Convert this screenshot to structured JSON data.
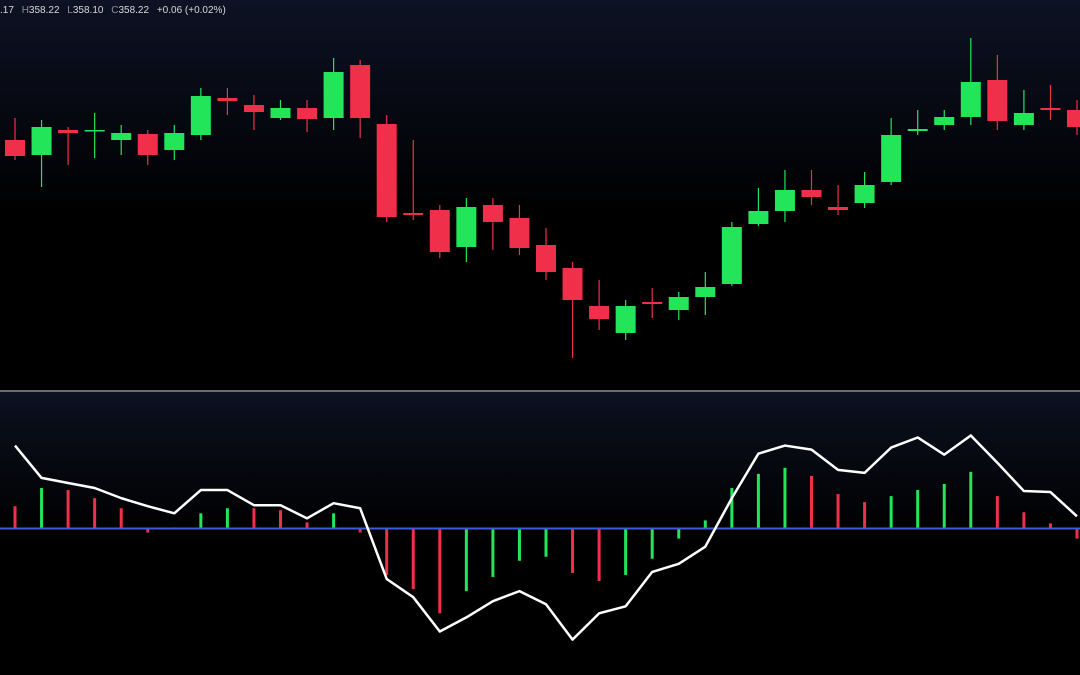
{
  "header": {
    "open_value": ".17",
    "high_label": "H",
    "high_value": "358.22",
    "low_label": "L",
    "low_value": "358.10",
    "close_label": "C",
    "close_value": "358.22",
    "change": "+0.06 (+0.02%)"
  },
  "chart_data": [
    {
      "type": "candlestick",
      "up_color": "#22e55a",
      "down_color": "#f0304a",
      "ylim": [
        0,
        390
      ],
      "open": [
        250,
        235,
        260,
        259,
        250,
        256,
        240,
        255,
        292,
        285,
        272,
        282,
        272,
        325,
        266,
        177,
        180,
        143,
        185,
        172,
        145,
        122,
        84,
        57,
        88,
        80,
        93,
        106,
        166,
        179,
        200,
        183,
        187,
        208,
        259,
        265,
        273,
        310,
        265,
        282,
        280
      ],
      "close": [
        234,
        263,
        257,
        260,
        257,
        235,
        257,
        294,
        289,
        278,
        282,
        271,
        318,
        272,
        173,
        175,
        138,
        183,
        168,
        142,
        118,
        90,
        71,
        84,
        86,
        93,
        103,
        163,
        179,
        200,
        193,
        180,
        205,
        255,
        261,
        273,
        308,
        269,
        277,
        280,
        263
      ],
      "high": [
        272,
        270,
        263,
        277,
        265,
        260,
        265,
        302,
        302,
        295,
        290,
        290,
        332,
        330,
        275,
        250,
        185,
        192,
        192,
        185,
        162,
        128,
        110,
        90,
        102,
        98,
        118,
        168,
        202,
        220,
        220,
        205,
        218,
        272,
        280,
        280,
        352,
        335,
        300,
        305,
        290
      ],
      "low": [
        230,
        203,
        225,
        232,
        235,
        225,
        230,
        250,
        275,
        260,
        270,
        258,
        260,
        252,
        168,
        170,
        132,
        128,
        140,
        135,
        110,
        32,
        60,
        50,
        72,
        70,
        75,
        104,
        164,
        168,
        185,
        175,
        182,
        205,
        255,
        260,
        265,
        260,
        260,
        270,
        255
      ]
    },
    {
      "type": "histogram_line",
      "ylim": [
        -145,
        135
      ],
      "zero_color": "#3b5bdb",
      "line_color": "#ffffff",
      "bars": [
        22,
        40,
        38,
        30,
        20,
        -4,
        1,
        15,
        20,
        20,
        18,
        6,
        15,
        -4,
        -46,
        -60,
        -84,
        -62,
        -48,
        -32,
        -28,
        -44,
        -52,
        -46,
        -30,
        -10,
        8,
        40,
        54,
        60,
        52,
        34,
        26,
        32,
        38,
        44,
        56,
        32,
        16,
        5,
        -10
      ],
      "bar_colors": [
        "#f0304a",
        "#22e55a",
        "#f0304a",
        "#f0304a",
        "#f0304a",
        "#f0304a",
        "#22e55a",
        "#22e55a",
        "#22e55a",
        "#f0304a",
        "#f0304a",
        "#f0304a",
        "#22e55a",
        "#f0304a",
        "#f0304a",
        "#f0304a",
        "#f0304a",
        "#22e55a",
        "#22e55a",
        "#22e55a",
        "#22e55a",
        "#f0304a",
        "#f0304a",
        "#22e55a",
        "#22e55a",
        "#22e55a",
        "#22e55a",
        "#22e55a",
        "#22e55a",
        "#22e55a",
        "#f0304a",
        "#f0304a",
        "#f0304a",
        "#22e55a",
        "#22e55a",
        "#22e55a",
        "#22e55a",
        "#f0304a",
        "#f0304a",
        "#f0304a",
        "#f0304a"
      ],
      "line": [
        82,
        50,
        45,
        40,
        30,
        22,
        15,
        38,
        38,
        23,
        23,
        10,
        25,
        20,
        -50,
        -68,
        -102,
        -88,
        -72,
        -62,
        -75,
        -110,
        -84,
        -77,
        -43,
        -35,
        -18,
        30,
        74,
        82,
        78,
        58,
        55,
        80,
        90,
        73,
        92,
        65,
        37,
        36,
        12
      ]
    }
  ]
}
